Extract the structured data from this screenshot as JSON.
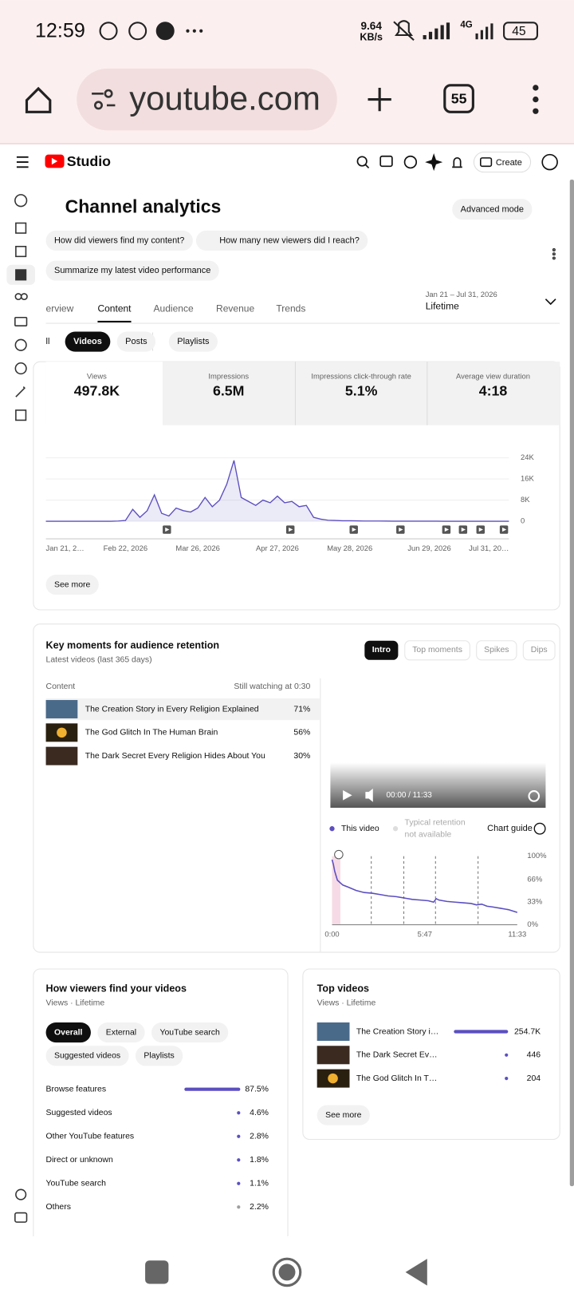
{
  "status_bar": {
    "time": "12:59",
    "speed": "9.64",
    "speed_unit": "KB/s",
    "network": "4G",
    "battery": "45"
  },
  "browser": {
    "url": "youtube.com",
    "tab_count": "55"
  },
  "header": {
    "brand": "Studio",
    "create_button": "Create"
  },
  "page": {
    "title": "Channel analytics",
    "mode_button": "Advanced mode"
  },
  "prompts": [
    "How did viewers find my content?",
    "How many new viewers did I reach?",
    "Summarize my latest video performance"
  ],
  "tabs": {
    "items": [
      "erview",
      "Content",
      "Audience",
      "Revenue",
      "Trends"
    ],
    "active": 1
  },
  "date_range": {
    "range": "Jan 21 – Jul 31, 2026",
    "period": "Lifetime"
  },
  "filters": {
    "items": [
      "ll",
      "Videos",
      "Posts",
      "Playlists"
    ],
    "active": 1
  },
  "metrics": [
    {
      "label": "Views",
      "value": "497.8K"
    },
    {
      "label": "Impressions",
      "value": "6.5M"
    },
    {
      "label": "Impressions click-through rate",
      "value": "5.1%"
    },
    {
      "label": "Average view duration",
      "value": "4:18"
    }
  ],
  "views_chart": {
    "type": "line",
    "color": "#5b4fc0",
    "grid": true,
    "categories": [
      "Jan 21, 2…",
      null,
      null,
      null,
      null,
      null,
      null,
      null,
      null,
      null,
      null,
      "Feb 22, 2026",
      null,
      null,
      null,
      null,
      null,
      null,
      null,
      null,
      null,
      "Mar 26, 2026",
      null,
      null,
      null,
      null,
      null,
      null,
      null,
      null,
      null,
      null,
      "Apr 27, 2026",
      null,
      null,
      null,
      null,
      null,
      null,
      null,
      null,
      null,
      "May 28, 2026",
      null,
      null,
      null,
      null,
      null,
      null,
      null,
      null,
      null,
      null,
      "Jun 29, 2026",
      null,
      null,
      null,
      null,
      null,
      null,
      null,
      null,
      null,
      null,
      "Jul 31, 20…"
    ],
    "values": [
      0,
      0,
      0,
      0,
      0,
      0,
      0,
      0,
      0,
      0,
      100,
      300,
      4500,
      1500,
      4000,
      10000,
      3000,
      2000,
      5000,
      4000,
      3500,
      5000,
      9000,
      5500,
      8000,
      14000,
      23000,
      9000,
      7500,
      6000,
      8000,
      7000,
      9500,
      7000,
      7500,
      5500,
      6000,
      1500,
      800,
      400,
      300,
      200,
      200,
      150,
      100,
      100,
      100,
      80,
      60,
      50,
      50,
      40,
      40,
      30,
      30,
      20,
      20,
      20,
      10,
      10,
      10,
      10,
      10,
      10,
      10
    ],
    "ylim": [
      0,
      24000
    ],
    "yticks": [
      0,
      {
        "value": 8000,
        "label": "8K"
      },
      {
        "value": 16000,
        "label": "16K"
      },
      {
        "value": 24000,
        "label": "24K"
      }
    ]
  },
  "see_more": "See more",
  "retention": {
    "title": "Key moments for audience retention",
    "subtitle": "Latest videos (last 365 days)",
    "modes": {
      "items": [
        "Intro",
        "Top moments",
        "Spikes",
        "Dips"
      ],
      "active": 0
    },
    "table": {
      "columns": [
        "Content",
        "Still watching at 0:30"
      ],
      "rows": [
        [
          "The Creation Story in Every Religion Explained",
          "71%"
        ],
        [
          "The God Glitch In The Human Brain",
          "56%"
        ],
        [
          "The Dark Secret Every Religion Hides About You",
          "30%"
        ]
      ]
    },
    "player_time": "00:00 / 11:33",
    "legend": {
      "typical_lines": [
        "Typical retention",
        "not available"
      ],
      "guide": "Chart guide"
    },
    "chart": {
      "type": "line",
      "x": [
        0,
        5,
        10,
        20,
        40,
        60,
        90,
        120,
        150,
        180,
        210,
        240,
        270,
        300,
        330,
        360,
        380,
        390,
        400,
        430,
        460,
        490,
        520,
        540,
        560,
        580,
        600,
        630,
        660,
        693
      ],
      "series": [
        {
          "name": "This video",
          "color": "#5b4fc0",
          "values": [
            95,
            88,
            78,
            65,
            58,
            55,
            50,
            47,
            46,
            44,
            42,
            41,
            39,
            37,
            36,
            35,
            33,
            38,
            36,
            34,
            33,
            32,
            31,
            29,
            30,
            27,
            26,
            24,
            22,
            18
          ]
        }
      ],
      "xlim": [
        0,
        693
      ],
      "xticks": [
        {
          "value": 0,
          "label": "0:00"
        },
        {
          "value": 347,
          "label": "5:47"
        },
        {
          "value": 693,
          "label": "11:33"
        }
      ],
      "ylim": [
        0,
        100
      ],
      "yticks": [
        {
          "value": 100,
          "label": "100%"
        },
        {
          "value": 66,
          "label": "66%"
        },
        {
          "value": 33,
          "label": "33%"
        },
        {
          "value": 0,
          "label": "0%"
        }
      ]
    }
  },
  "traffic": {
    "type": "bar",
    "title": "How viewers find your videos",
    "subtitle": "Views · Lifetime",
    "filters": {
      "items": [
        "Overall",
        "External",
        "YouTube search",
        "Suggested videos",
        "Playlists"
      ],
      "active": 0
    },
    "categories": [
      "Browse features",
      "Suggested videos",
      "Other YouTube features",
      "Direct or unknown",
      "YouTube search",
      "Others"
    ],
    "values": [
      87.5,
      4.6,
      2.8,
      1.8,
      1.1,
      2.2
    ],
    "value_labels": [
      "87.5%",
      "4.6%",
      "2.8%",
      "1.8%",
      "1.1%",
      "2.2%"
    ],
    "colors": [
      "#5b4fc0",
      "#5b4fc0",
      "#5b4fc0",
      "#5b4fc0",
      "#5b4fc0",
      "#9e9e9e"
    ]
  },
  "top_videos": {
    "type": "bar",
    "title": "Top videos",
    "subtitle": "Views · Lifetime",
    "color": "#5b4fc0",
    "categories": [
      "The Creation Story i…",
      "The Dark Secret Ev…",
      "The God Glitch In T…"
    ],
    "values": [
      254700,
      446,
      204
    ],
    "value_labels": [
      "254.7K",
      "446",
      "204"
    ],
    "see_more": "See more"
  }
}
